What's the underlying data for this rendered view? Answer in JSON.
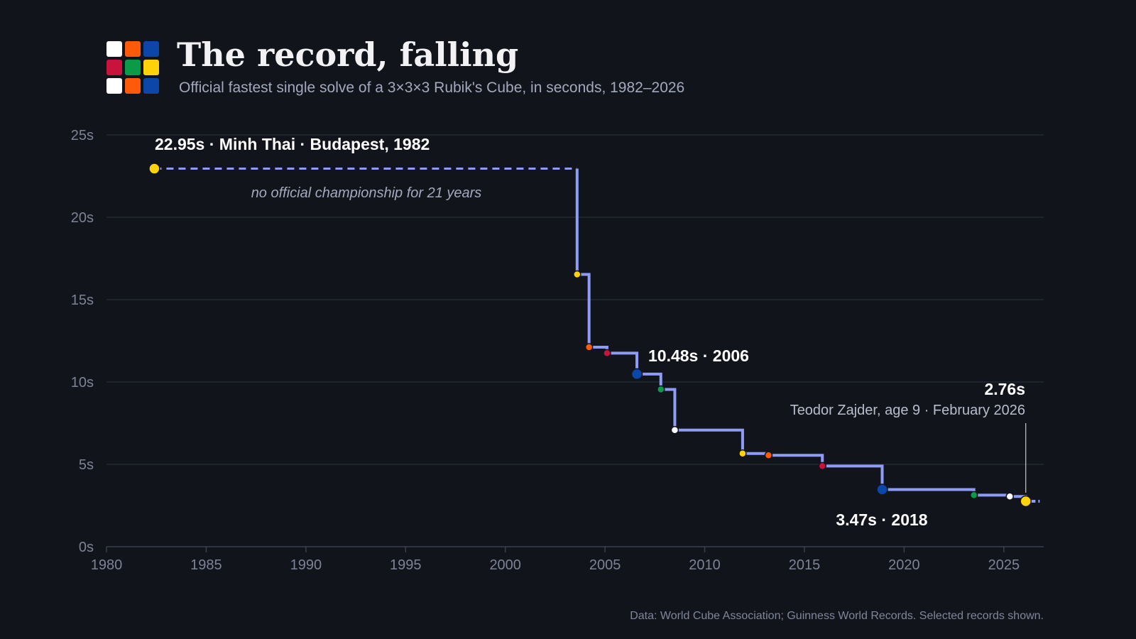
{
  "header": {
    "title": "The record, falling",
    "subtitle": "Official fastest single solve of a 3×3×3 Rubik's Cube, in seconds, 1982–2026",
    "logo_colors": [
      "#ffffff",
      "#ff5a0a",
      "#0b46a8",
      "#c8143c",
      "#0a9a48",
      "#ffd20a",
      "#ffffff",
      "#ff5a0a",
      "#0b46a8"
    ]
  },
  "colors": {
    "background": "#12141c",
    "line": "#8f9cf6",
    "white": "#ffffff",
    "orange": "#ff5a0a",
    "blue": "#0b46a8",
    "red": "#c8143c",
    "green": "#0a9a48",
    "yellow": "#ffd20a"
  },
  "chart_data": {
    "type": "line",
    "step": "after",
    "xlim": [
      1980,
      2027
    ],
    "ylim": [
      0,
      25
    ],
    "x_ticks": [
      1980,
      1985,
      1990,
      1995,
      2000,
      2005,
      2010,
      2015,
      2020,
      2025
    ],
    "x_tick_labels": [
      "1980",
      "1985",
      "1990",
      "1995",
      "2000",
      "2005",
      "2010",
      "2015",
      "2020",
      "2025"
    ],
    "y_ticks": [
      0,
      5,
      10,
      15,
      20,
      25
    ],
    "y_tick_labels": [
      "0s",
      "5s",
      "10s",
      "15s",
      "20s",
      "25s"
    ],
    "grid": true,
    "line_end_x": 2026.8,
    "gap_from": 1982.4,
    "gap_to": 2003.6,
    "points": [
      {
        "x": 1982.4,
        "y": 22.95,
        "color": "yellow",
        "major": true
      },
      {
        "x": 2003.6,
        "y": 16.53,
        "color": "yellow"
      },
      {
        "x": 2004.2,
        "y": 12.11,
        "color": "orange"
      },
      {
        "x": 2005.1,
        "y": 11.75,
        "color": "red"
      },
      {
        "x": 2006.6,
        "y": 10.48,
        "color": "blue",
        "major": true
      },
      {
        "x": 2007.8,
        "y": 9.55,
        "color": "green"
      },
      {
        "x": 2008.5,
        "y": 7.08,
        "color": "white"
      },
      {
        "x": 2011.9,
        "y": 5.66,
        "color": "yellow"
      },
      {
        "x": 2013.2,
        "y": 5.55,
        "color": "orange"
      },
      {
        "x": 2015.9,
        "y": 4.9,
        "color": "red"
      },
      {
        "x": 2018.9,
        "y": 3.47,
        "color": "blue",
        "major": true
      },
      {
        "x": 2023.5,
        "y": 3.13,
        "color": "green"
      },
      {
        "x": 2025.3,
        "y": 3.05,
        "color": "white"
      },
      {
        "x": 2026.1,
        "y": 2.76,
        "color": "yellow",
        "major": true
      }
    ],
    "annotations": {
      "first": "22.95s · Minh Thai · Budapest, 1982",
      "gap_note": "no official championship for 21 years",
      "mid": "10.48s · 2006",
      "low": "3.47s · 2018",
      "current_time": "2.76s",
      "current_desc": "Teodor Zajder, age 9 · February 2026"
    }
  },
  "source": "Data: World Cube Association; Guinness World Records. Selected records shown."
}
